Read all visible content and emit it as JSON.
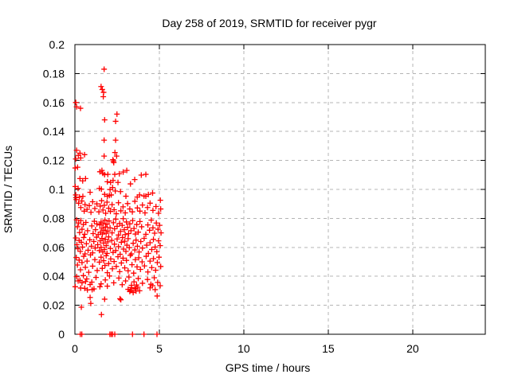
{
  "title": "Day 258 of 2019, SRMTID for receiver pygr",
  "chart_data": {
    "type": "scatter",
    "title": "Day 258 of 2019, SRMTID for receiver pygr",
    "xlabel": "GPS time / hours",
    "ylabel": "SRMTID / TECUs",
    "xlim": [
      0,
      24.3
    ],
    "ylim": [
      0,
      0.2
    ],
    "xticks": [
      {
        "v": 0,
        "label": "0"
      },
      {
        "v": 5,
        "label": "5"
      },
      {
        "v": 10,
        "label": "10"
      },
      {
        "v": 15,
        "label": "15"
      },
      {
        "v": 20,
        "label": "20"
      }
    ],
    "yticks": [
      {
        "v": 0,
        "label": "0"
      },
      {
        "v": 0.02,
        "label": "0.02"
      },
      {
        "v": 0.04,
        "label": "0.04"
      },
      {
        "v": 0.06,
        "label": "0.06"
      },
      {
        "v": 0.08,
        "label": "0.08"
      },
      {
        "v": 0.1,
        "label": "0.1"
      },
      {
        "v": 0.12,
        "label": "0.12"
      },
      {
        "v": 0.14,
        "label": "0.14"
      },
      {
        "v": 0.16,
        "label": "0.16"
      },
      {
        "v": 0.18,
        "label": "0.18"
      },
      {
        "v": 0.2,
        "label": "0.2"
      }
    ],
    "grid": true,
    "legend": "none",
    "marker": "plus",
    "marker_color": "#ff0000",
    "grid_color": "#b4b4b4",
    "border_color": "#000000",
    "background_color": "#ffffff",
    "points": [
      [
        1.73,
        0.183
      ],
      [
        1.55,
        0.171
      ],
      [
        1.62,
        0.169
      ],
      [
        1.7,
        0.167
      ],
      [
        1.68,
        0.164
      ],
      [
        0.05,
        0.16
      ],
      [
        0.1,
        0.157
      ],
      [
        0.33,
        0.156
      ],
      [
        2.49,
        0.152
      ],
      [
        1.76,
        0.148
      ],
      [
        2.41,
        0.147
      ],
      [
        2.41,
        0.134
      ],
      [
        1.73,
        0.134
      ],
      [
        2.37,
        0.1255
      ],
      [
        0.1,
        0.127
      ],
      [
        0.3,
        0.125
      ],
      [
        0.57,
        0.124
      ],
      [
        0.2,
        0.1235
      ],
      [
        1.73,
        0.123
      ],
      [
        2.47,
        0.123
      ],
      [
        2.25,
        0.1205
      ],
      [
        0.34,
        0.1217
      ],
      [
        2.28,
        0.1195
      ],
      [
        2.3,
        0.1185
      ],
      [
        0.05,
        0.121
      ],
      [
        0.02,
        0.1148
      ],
      [
        0.16,
        0.1153
      ],
      [
        1.48,
        0.1122
      ],
      [
        1.6,
        0.1131
      ],
      [
        1.65,
        0.1111
      ],
      [
        1.76,
        0.1102
      ],
      [
        1.95,
        0.1104
      ],
      [
        2.36,
        0.1104
      ],
      [
        2.63,
        0.1108
      ],
      [
        2.86,
        0.112
      ],
      [
        3.07,
        0.1131
      ],
      [
        3.93,
        0.1099
      ],
      [
        4.2,
        0.1104
      ],
      [
        0.3,
        0.1075
      ],
      [
        0.46,
        0.1059
      ],
      [
        0.63,
        0.1075
      ],
      [
        1.92,
        0.1053
      ],
      [
        2.11,
        0.1048
      ],
      [
        2.26,
        0.1062
      ],
      [
        2.55,
        0.1048
      ],
      [
        3.29,
        0.1038
      ],
      [
        3.54,
        0.1068
      ],
      [
        0.02,
        0.102
      ],
      [
        0.19,
        0.1007
      ],
      [
        1.45,
        0.1007
      ],
      [
        1.57,
        0.1002
      ],
      [
        2.08,
        0.0999
      ],
      [
        2.23,
        0.1013
      ],
      [
        2.39,
        0.0989
      ],
      [
        0.05,
        0.0962
      ],
      [
        0.06,
        0.0943
      ],
      [
        0.27,
        0.0947
      ],
      [
        0.47,
        0.0952
      ],
      [
        1.76,
        0.0966
      ],
      [
        1.92,
        0.0953
      ],
      [
        2.04,
        0.0958
      ],
      [
        2.15,
        0.0962
      ],
      [
        3.02,
        0.0953
      ],
      [
        3.69,
        0.0947
      ],
      [
        3.83,
        0.0962
      ],
      [
        4.09,
        0.0955
      ],
      [
        4.2,
        0.0953
      ],
      [
        4.35,
        0.0965
      ],
      [
        5.06,
        0.0925
      ],
      [
        0.9,
        0.098
      ],
      [
        2.7,
        0.0985
      ],
      [
        4.6,
        0.0975
      ],
      [
        0.08,
        0.093
      ],
      [
        0.22,
        0.0905
      ],
      [
        0.35,
        0.0875
      ],
      [
        0.41,
        0.092
      ],
      [
        0.55,
        0.085
      ],
      [
        0.6,
        0.0895
      ],
      [
        0.72,
        0.0862
      ],
      [
        0.85,
        0.0888
      ],
      [
        0.95,
        0.0842
      ],
      [
        1.05,
        0.0915
      ],
      [
        1.18,
        0.0868
      ],
      [
        1.3,
        0.09
      ],
      [
        1.42,
        0.0845
      ],
      [
        1.5,
        0.0885
      ],
      [
        1.58,
        0.0922
      ],
      [
        1.66,
        0.0858
      ],
      [
        1.74,
        0.089
      ],
      [
        1.82,
        0.0835
      ],
      [
        1.9,
        0.0912
      ],
      [
        2.0,
        0.087
      ],
      [
        2.1,
        0.0848
      ],
      [
        2.2,
        0.0895
      ],
      [
        2.32,
        0.086
      ],
      [
        2.45,
        0.0832
      ],
      [
        2.58,
        0.0908
      ],
      [
        2.72,
        0.0852
      ],
      [
        2.85,
        0.088
      ],
      [
        2.98,
        0.0838
      ],
      [
        3.12,
        0.0902
      ],
      [
        3.25,
        0.0865
      ],
      [
        3.4,
        0.0845
      ],
      [
        3.55,
        0.0918
      ],
      [
        3.7,
        0.0872
      ],
      [
        3.85,
        0.085
      ],
      [
        4.0,
        0.0892
      ],
      [
        4.15,
        0.0838
      ],
      [
        4.3,
        0.0875
      ],
      [
        4.45,
        0.0905
      ],
      [
        4.62,
        0.0855
      ],
      [
        4.8,
        0.0882
      ],
      [
        4.95,
        0.0835
      ],
      [
        5.08,
        0.0865
      ],
      [
        0.1,
        0.079
      ],
      [
        0.15,
        0.0742
      ],
      [
        0.22,
        0.0768
      ],
      [
        0.28,
        0.0702
      ],
      [
        0.35,
        0.0785
      ],
      [
        0.42,
        0.0725
      ],
      [
        0.5,
        0.0758
      ],
      [
        0.58,
        0.069
      ],
      [
        0.65,
        0.0772
      ],
      [
        0.75,
        0.0715
      ],
      [
        1.0,
        0.0748
      ],
      [
        1.08,
        0.0695
      ],
      [
        1.15,
        0.078
      ],
      [
        1.22,
        0.0722
      ],
      [
        1.3,
        0.0762
      ],
      [
        1.38,
        0.0688
      ],
      [
        1.48,
        0.0755
      ],
      [
        1.52,
        0.0705
      ],
      [
        1.55,
        0.0775
      ],
      [
        1.6,
        0.0732
      ],
      [
        1.63,
        0.0692
      ],
      [
        1.68,
        0.0765
      ],
      [
        1.72,
        0.0718
      ],
      [
        1.78,
        0.0788
      ],
      [
        1.82,
        0.074
      ],
      [
        1.85,
        0.0698
      ],
      [
        1.9,
        0.076
      ],
      [
        1.95,
        0.0712
      ],
      [
        2.02,
        0.0782
      ],
      [
        2.08,
        0.0735
      ],
      [
        2.2,
        0.07
      ],
      [
        2.28,
        0.077
      ],
      [
        2.35,
        0.0728
      ],
      [
        2.42,
        0.0795
      ],
      [
        2.5,
        0.0745
      ],
      [
        2.58,
        0.0685
      ],
      [
        2.65,
        0.0765
      ],
      [
        2.7,
        0.071
      ],
      [
        2.8,
        0.0752
      ],
      [
        2.86,
        0.0798
      ],
      [
        2.92,
        0.0722
      ],
      [
        2.98,
        0.0688
      ],
      [
        3.05,
        0.0775
      ],
      [
        3.12,
        0.0738
      ],
      [
        3.18,
        0.0695
      ],
      [
        3.25,
        0.0762
      ],
      [
        3.32,
        0.0715
      ],
      [
        3.42,
        0.0785
      ],
      [
        3.5,
        0.073
      ],
      [
        3.58,
        0.0692
      ],
      [
        3.66,
        0.0758
      ],
      [
        3.75,
        0.0705
      ],
      [
        3.85,
        0.0778
      ],
      [
        3.95,
        0.0742
      ],
      [
        4.2,
        0.069
      ],
      [
        4.32,
        0.0755
      ],
      [
        4.42,
        0.0718
      ],
      [
        4.52,
        0.0788
      ],
      [
        4.62,
        0.0735
      ],
      [
        4.72,
        0.0698
      ],
      [
        4.82,
        0.0768
      ],
      [
        4.92,
        0.0725
      ],
      [
        5.02,
        0.0752
      ],
      [
        5.1,
        0.07
      ],
      [
        0.05,
        0.0665
      ],
      [
        0.12,
        0.0618
      ],
      [
        0.18,
        0.059
      ],
      [
        0.25,
        0.0648
      ],
      [
        0.32,
        0.0572
      ],
      [
        0.38,
        0.0635
      ],
      [
        0.45,
        0.0602
      ],
      [
        0.52,
        0.0668
      ],
      [
        0.6,
        0.0555
      ],
      [
        0.68,
        0.0625
      ],
      [
        0.78,
        0.058
      ],
      [
        0.88,
        0.0652
      ],
      [
        0.98,
        0.0608
      ],
      [
        1.05,
        0.0562
      ],
      [
        1.12,
        0.064
      ],
      [
        1.2,
        0.0595
      ],
      [
        1.28,
        0.067
      ],
      [
        1.35,
        0.0618
      ],
      [
        1.45,
        0.0578
      ],
      [
        1.5,
        0.0645
      ],
      [
        1.55,
        0.06
      ],
      [
        1.6,
        0.0662
      ],
      [
        1.65,
        0.0568
      ],
      [
        1.7,
        0.063
      ],
      [
        1.75,
        0.0585
      ],
      [
        1.8,
        0.0655
      ],
      [
        1.85,
        0.0612
      ],
      [
        1.9,
        0.0558
      ],
      [
        1.95,
        0.0638
      ],
      [
        2.0,
        0.0672
      ],
      [
        2.1,
        0.0592
      ],
      [
        2.18,
        0.0648
      ],
      [
        2.26,
        0.0565
      ],
      [
        2.34,
        0.0622
      ],
      [
        2.42,
        0.0578
      ],
      [
        2.5,
        0.0658
      ],
      [
        2.58,
        0.0605
      ],
      [
        2.68,
        0.0552
      ],
      [
        2.75,
        0.0635
      ],
      [
        2.82,
        0.0668
      ],
      [
        2.88,
        0.0588
      ],
      [
        2.95,
        0.0642
      ],
      [
        3.02,
        0.0572
      ],
      [
        3.08,
        0.0615
      ],
      [
        3.15,
        0.066
      ],
      [
        3.22,
        0.0598
      ],
      [
        3.35,
        0.0555
      ],
      [
        3.45,
        0.0628
      ],
      [
        3.55,
        0.0582
      ],
      [
        3.62,
        0.065
      ],
      [
        3.7,
        0.0608
      ],
      [
        3.8,
        0.0568
      ],
      [
        3.9,
        0.064
      ],
      [
        4.0,
        0.0595
      ],
      [
        4.1,
        0.0662
      ],
      [
        4.25,
        0.0615
      ],
      [
        4.35,
        0.0558
      ],
      [
        4.45,
        0.0632
      ],
      [
        4.55,
        0.0585
      ],
      [
        4.65,
        0.0655
      ],
      [
        4.75,
        0.0602
      ],
      [
        4.85,
        0.057
      ],
      [
        4.95,
        0.0645
      ],
      [
        5.05,
        0.0612
      ],
      [
        0.08,
        0.053
      ],
      [
        0.15,
        0.0478
      ],
      [
        0.25,
        0.0512
      ],
      [
        0.33,
        0.0445
      ],
      [
        0.42,
        0.0495
      ],
      [
        0.52,
        0.0538
      ],
      [
        0.62,
        0.0462
      ],
      [
        0.72,
        0.0505
      ],
      [
        0.82,
        0.0428
      ],
      [
        0.92,
        0.0548
      ],
      [
        1.05,
        0.047
      ],
      [
        1.18,
        0.0515
      ],
      [
        1.32,
        0.044
      ],
      [
        1.45,
        0.0498
      ],
      [
        1.55,
        0.0532
      ],
      [
        1.62,
        0.0455
      ],
      [
        1.7,
        0.0508
      ],
      [
        1.78,
        0.0475
      ],
      [
        1.85,
        0.0542
      ],
      [
        1.92,
        0.0425
      ],
      [
        2.0,
        0.0488
      ],
      [
        2.12,
        0.052
      ],
      [
        2.22,
        0.0452
      ],
      [
        2.32,
        0.0502
      ],
      [
        2.45,
        0.0468
      ],
      [
        2.55,
        0.0535
      ],
      [
        2.65,
        0.0432
      ],
      [
        2.75,
        0.0492
      ],
      [
        2.85,
        0.0525
      ],
      [
        2.95,
        0.0458
      ],
      [
        3.05,
        0.051
      ],
      [
        3.15,
        0.0438
      ],
      [
        3.28,
        0.0545
      ],
      [
        3.38,
        0.048
      ],
      [
        3.48,
        0.0422
      ],
      [
        3.58,
        0.0515
      ],
      [
        3.68,
        0.0465
      ],
      [
        3.78,
        0.0528
      ],
      [
        3.88,
        0.0448
      ],
      [
        3.98,
        0.05
      ],
      [
        4.12,
        0.0472
      ],
      [
        4.22,
        0.0538
      ],
      [
        4.32,
        0.043
      ],
      [
        4.45,
        0.0505
      ],
      [
        4.55,
        0.046
      ],
      [
        4.65,
        0.0522
      ],
      [
        4.78,
        0.0442
      ],
      [
        4.88,
        0.0495
      ],
      [
        4.98,
        0.0532
      ],
      [
        5.08,
        0.0468
      ],
      [
        0.1,
        0.0398
      ],
      [
        0.3,
        0.0372
      ],
      [
        0.5,
        0.0405
      ],
      [
        0.7,
        0.0382
      ],
      [
        1.0,
        0.036
      ],
      [
        1.25,
        0.0392
      ],
      [
        1.55,
        0.0348
      ],
      [
        1.8,
        0.0375
      ],
      [
        2.05,
        0.0402
      ],
      [
        2.3,
        0.0355
      ],
      [
        2.6,
        0.0388
      ],
      [
        2.8,
        0.0342
      ],
      [
        3.0,
        0.0368
      ],
      [
        3.2,
        0.0395
      ],
      [
        3.35,
        0.0338
      ],
      [
        3.5,
        0.0362
      ],
      [
        3.65,
        0.034
      ],
      [
        3.75,
        0.0385
      ],
      [
        4.0,
        0.0352
      ],
      [
        4.3,
        0.0378
      ],
      [
        4.5,
        0.0345
      ],
      [
        4.7,
        0.039
      ],
      [
        4.9,
        0.0358
      ],
      [
        5.05,
        0.0335
      ],
      [
        3.15,
        0.031
      ],
      [
        3.25,
        0.0295
      ],
      [
        3.35,
        0.0322
      ],
      [
        3.45,
        0.0288
      ],
      [
        3.55,
        0.0315
      ],
      [
        3.62,
        0.0298
      ],
      [
        3.72,
        0.0325
      ],
      [
        4.45,
        0.032
      ],
      [
        4.6,
        0.0335
      ],
      [
        4.75,
        0.0308
      ],
      [
        0.19,
        0.0368
      ],
      [
        0.42,
        0.0355
      ],
      [
        0.63,
        0.0364
      ],
      [
        0.9,
        0.0343
      ],
      [
        0.02,
        0.0328
      ],
      [
        0.34,
        0.0319
      ],
      [
        0.74,
        0.0306
      ],
      [
        1.13,
        0.0313
      ],
      [
        1.48,
        0.0328
      ],
      [
        1.92,
        0.0332
      ],
      [
        0.58,
        0.0317
      ],
      [
        1.02,
        0.0308
      ],
      [
        3.3,
        0.0303
      ],
      [
        3.6,
        0.0313
      ],
      [
        3.83,
        0.03
      ],
      [
        4.87,
        0.0264
      ],
      [
        0.9,
        0.0254
      ],
      [
        1.76,
        0.0242
      ],
      [
        2.67,
        0.0245
      ],
      [
        2.72,
        0.0238
      ],
      [
        0.38,
        0.0187
      ],
      [
        1.57,
        0.0136
      ],
      [
        0.94,
        0.0213
      ],
      [
        0.32,
        0
      ],
      [
        0.41,
        0
      ],
      [
        2.07,
        0
      ],
      [
        2.15,
        0
      ],
      [
        2.23,
        0
      ],
      [
        2.36,
        0
      ],
      [
        3.41,
        0
      ],
      [
        4.09,
        0
      ],
      [
        4.86,
        0
      ]
    ]
  }
}
